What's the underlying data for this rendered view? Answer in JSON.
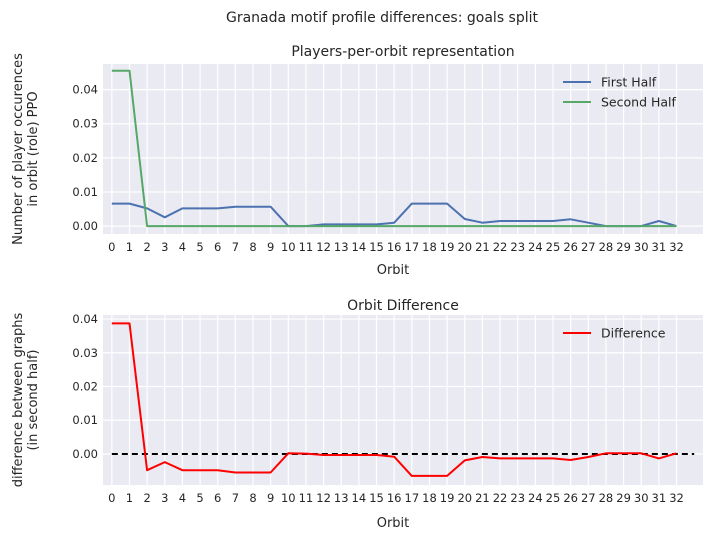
{
  "figure": {
    "suptitle": "Granada motif profile differences: goals split"
  },
  "chart_data": [
    {
      "type": "line",
      "title": "Players-per-orbit representation",
      "xlabel": "Orbit",
      "ylabel_lines": [
        "Number of player occurences",
        "in orbit (role) PPO"
      ],
      "x": [
        0,
        1,
        2,
        3,
        4,
        5,
        6,
        7,
        8,
        9,
        10,
        11,
        12,
        13,
        14,
        15,
        16,
        17,
        18,
        19,
        20,
        21,
        22,
        23,
        24,
        25,
        26,
        27,
        28,
        29,
        30,
        31,
        32
      ],
      "ylim": [
        -0.0023,
        0.0475
      ],
      "yticks": [
        0.0,
        0.01,
        0.02,
        0.03,
        0.04
      ],
      "ytick_labels": [
        "0.00",
        "0.01",
        "0.02",
        "0.03",
        "0.04"
      ],
      "grid": true,
      "legend": "top-right",
      "series": [
        {
          "name": "First Half",
          "color": "#4c72b0",
          "values": [
            0.0066,
            0.0066,
            0.0052,
            0.0026,
            0.0052,
            0.0052,
            0.0052,
            0.0057,
            0.0057,
            0.0057,
            0.0,
            0.0,
            0.0005,
            0.0005,
            0.0005,
            0.0005,
            0.001,
            0.0066,
            0.0066,
            0.0066,
            0.0021,
            0.001,
            0.0015,
            0.0015,
            0.0015,
            0.0015,
            0.002,
            0.001,
            0.0,
            0.0,
            0.0,
            0.0015,
            0.0
          ]
        },
        {
          "name": "Second Half",
          "color": "#55a868",
          "values": [
            0.0455,
            0.0455,
            0.0,
            0.0,
            0.0,
            0.0,
            0.0,
            0.0,
            0.0,
            0.0,
            0.0,
            0.0,
            0.0,
            0.0,
            0.0,
            0.0,
            0.0,
            0.0,
            0.0,
            0.0,
            0.0,
            0.0,
            0.0,
            0.0,
            0.0,
            0.0,
            0.0,
            0.0,
            0.0,
            0.0,
            0.0,
            0.0,
            0.0
          ]
        }
      ]
    },
    {
      "type": "line",
      "title": "Orbit Difference",
      "xlabel": "Orbit",
      "ylabel_lines": [
        "difference between graphs",
        "(in second half)"
      ],
      "x": [
        0,
        1,
        2,
        3,
        4,
        5,
        6,
        7,
        8,
        9,
        10,
        11,
        12,
        13,
        14,
        15,
        16,
        17,
        18,
        19,
        20,
        21,
        22,
        23,
        24,
        25,
        26,
        27,
        28,
        29,
        30,
        31,
        32
      ],
      "ylim": [
        -0.0092,
        0.0412
      ],
      "yticks": [
        0.0,
        0.01,
        0.02,
        0.03,
        0.04
      ],
      "ytick_labels": [
        "0.00",
        "0.01",
        "0.02",
        "0.03",
        "0.04"
      ],
      "grid": true,
      "legend": "top-right",
      "zero_line": {
        "from_x": 0,
        "to_x": 33,
        "y": 0.0,
        "color": "#000000",
        "style": "dashed"
      },
      "series": [
        {
          "name": "Difference",
          "color": "#ff0000",
          "values": [
            0.0387,
            0.0387,
            -0.0048,
            -0.0024,
            -0.0048,
            -0.0048,
            -0.0048,
            -0.0055,
            -0.0055,
            -0.0055,
            0.0002,
            0.0001,
            -0.0003,
            -0.0003,
            -0.0003,
            -0.0003,
            -0.0008,
            -0.0065,
            -0.0065,
            -0.0065,
            -0.0019,
            -0.0009,
            -0.0013,
            -0.0013,
            -0.0013,
            -0.0013,
            -0.0018,
            -0.0009,
            0.0002,
            0.0002,
            0.0002,
            -0.0013,
            0.0002
          ]
        }
      ]
    }
  ]
}
